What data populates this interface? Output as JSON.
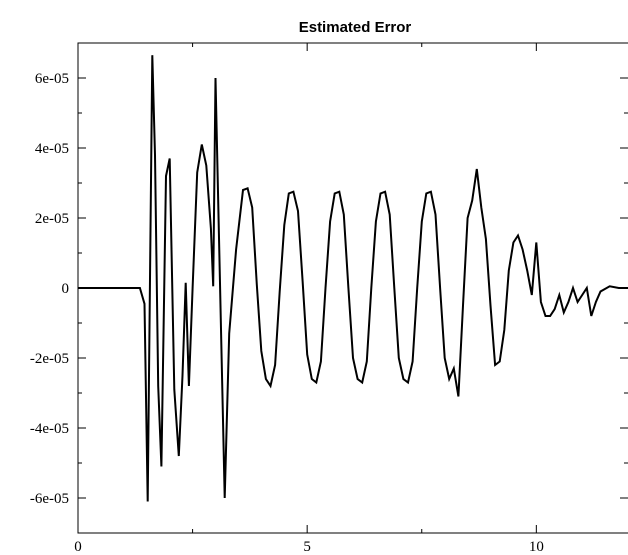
{
  "chart_data": {
    "type": "line",
    "title": "Estimated Error",
    "xlabel": "",
    "ylabel": "",
    "xlim": [
      0,
      12
    ],
    "ylim": [
      -7e-05,
      7e-05
    ],
    "grid": false,
    "x_ticks": [
      {
        "value": 0,
        "label": "0"
      },
      {
        "value": 5,
        "label": "5"
      },
      {
        "value": 10,
        "label": "10"
      }
    ],
    "y_ticks": [
      {
        "value": 6e-05,
        "label": "6e-05"
      },
      {
        "value": 4e-05,
        "label": "4e-05"
      },
      {
        "value": 2e-05,
        "label": "2e-05"
      },
      {
        "value": 0,
        "label": "0"
      },
      {
        "value": -2e-05,
        "label": "-2e-05"
      },
      {
        "value": -4e-05,
        "label": "-4e-05"
      },
      {
        "value": -6e-05,
        "label": "-6e-05"
      }
    ],
    "series": [
      {
        "color": "#000000",
        "x": [
          0,
          1.35,
          1.45,
          1.52,
          1.62,
          1.68,
          1.75,
          1.82,
          1.92,
          2.0,
          2.1,
          2.2,
          2.28,
          2.35,
          2.42,
          2.5,
          2.6,
          2.7,
          2.8,
          2.9,
          2.95,
          3.0,
          3.2,
          3.3,
          3.45,
          3.6,
          3.7,
          3.8,
          3.9,
          4.0,
          4.1,
          4.2,
          4.3,
          4.4,
          4.5,
          4.6,
          4.7,
          4.8,
          4.9,
          5.0,
          5.1,
          5.2,
          5.3,
          5.4,
          5.5,
          5.6,
          5.7,
          5.8,
          5.9,
          6.0,
          6.1,
          6.2,
          6.3,
          6.4,
          6.5,
          6.6,
          6.7,
          6.8,
          6.9,
          7.0,
          7.1,
          7.2,
          7.3,
          7.4,
          7.5,
          7.6,
          7.7,
          7.8,
          7.9,
          8.0,
          8.1,
          8.2,
          8.3,
          8.4,
          8.5,
          8.6,
          8.7,
          8.8,
          8.9,
          9.0,
          9.1,
          9.2,
          9.3,
          9.4,
          9.5,
          9.6,
          9.7,
          9.8,
          9.9,
          10.0,
          10.1,
          10.2,
          10.3,
          10.4,
          10.5,
          10.6,
          10.7,
          10.8,
          10.9,
          11.0,
          11.1,
          11.2,
          11.3,
          11.4,
          11.6,
          11.8,
          12.0
        ],
        "values": [
          0,
          0,
          -4.5e-06,
          -6.1e-05,
          6.65e-05,
          3.8e-05,
          -2.8e-05,
          -5.1e-05,
          3.2e-05,
          3.7e-05,
          -2.9e-05,
          -4.8e-05,
          -2.5e-05,
          1.5e-06,
          -2.8e-05,
          0,
          3.3e-05,
          4.1e-05,
          3.5e-05,
          1.7e-05,
          5e-07,
          6e-05,
          -6e-05,
          -1.3e-05,
          1.1e-05,
          2.8e-05,
          2.85e-05,
          2.3e-05,
          1e-06,
          -1.8e-05,
          -2.6e-05,
          -2.8e-05,
          -2.2e-05,
          -1e-06,
          1.8e-05,
          2.7e-05,
          2.75e-05,
          2.2e-05,
          2e-06,
          -1.9e-05,
          -2.6e-05,
          -2.7e-05,
          -2.1e-05,
          0,
          1.9e-05,
          2.7e-05,
          2.75e-05,
          2.1e-05,
          0,
          -2e-05,
          -2.6e-05,
          -2.7e-05,
          -2.1e-05,
          0,
          1.9e-05,
          2.7e-05,
          2.75e-05,
          2.1e-05,
          0,
          -2e-05,
          -2.6e-05,
          -2.7e-05,
          -2.1e-05,
          0,
          1.9e-05,
          2.7e-05,
          2.75e-05,
          2.1e-05,
          0,
          -2e-05,
          -2.6e-05,
          -2.3e-05,
          -3.1e-05,
          -5e-06,
          2e-05,
          2.5e-05,
          3.4e-05,
          2.3e-05,
          1.4e-05,
          -5e-06,
          -2.2e-05,
          -2.1e-05,
          -1.2e-05,
          5e-06,
          1.3e-05,
          1.5e-05,
          1.1e-05,
          5e-06,
          -2e-06,
          1.3e-05,
          -4e-06,
          -8e-06,
          -8e-06,
          -6e-06,
          -2e-06,
          -7e-06,
          -4e-06,
          0,
          -4e-06,
          -2e-06,
          0,
          -8e-06,
          -4e-06,
          -1e-06,
          5e-07,
          0,
          0
        ]
      }
    ]
  }
}
